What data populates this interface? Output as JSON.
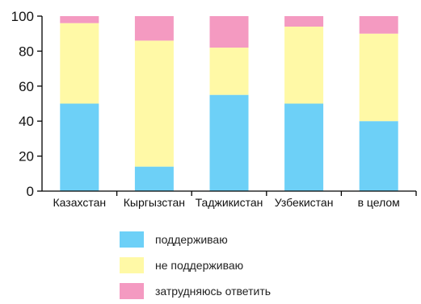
{
  "chart_data": {
    "type": "bar",
    "stacked": true,
    "categories": [
      "Казахстан",
      "Кыргызстан",
      "Таджикистан",
      "Узбекистан",
      "в целом"
    ],
    "series": [
      {
        "name": "поддерживаю",
        "color": "#6dd0f7",
        "values": [
          50,
          14,
          55,
          50,
          40
        ]
      },
      {
        "name": "не  поддерживаю",
        "color": "#fff9a6",
        "values": [
          46,
          72,
          27,
          44,
          50
        ]
      },
      {
        "name": "затрудняюсь ответить",
        "color": "#f49ac1",
        "values": [
          4,
          14,
          18,
          6,
          10
        ]
      }
    ],
    "ylim": [
      0,
      100
    ],
    "yticks": [
      0,
      20,
      40,
      60,
      80,
      100
    ],
    "grid": false,
    "legend_position": "bottom"
  }
}
